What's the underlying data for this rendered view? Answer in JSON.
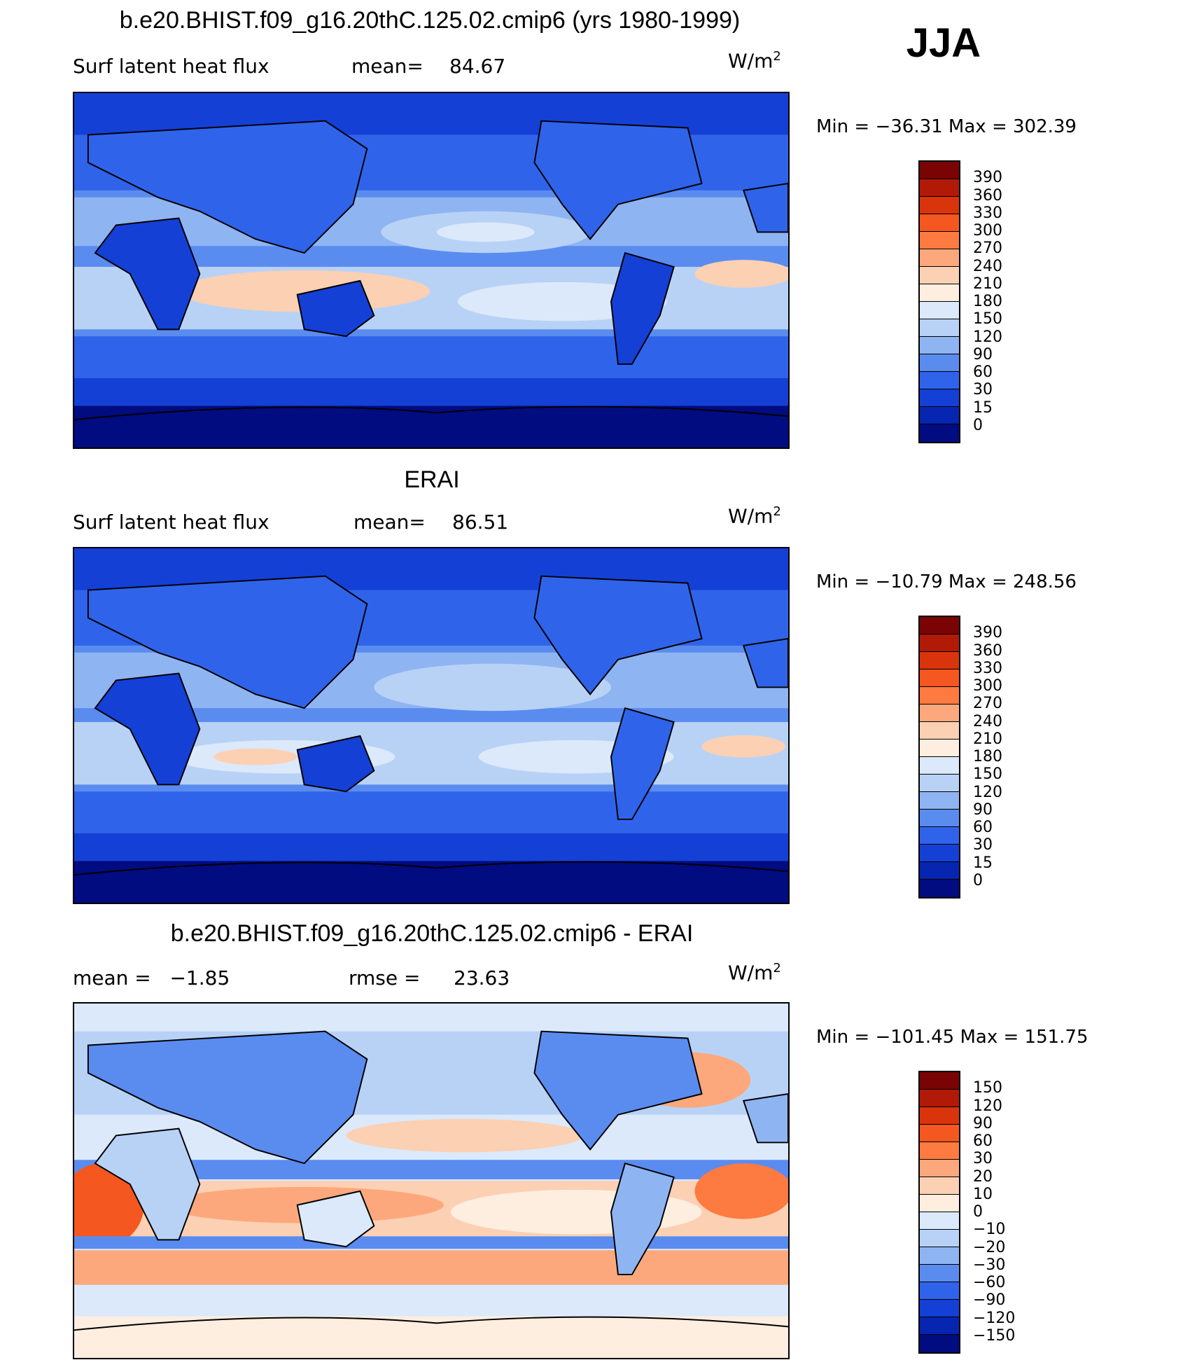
{
  "season": "JJA",
  "panels": [
    {
      "title": "b.e20.BHIST.f09_g16.20thC.125.02.cmip6 (yrs 1980-1999)",
      "left_label": "Surf latent heat flux",
      "mid_label": "mean=",
      "mid_value": "84.67",
      "units_base": "W/m",
      "units_exp": "2",
      "min_label": "Min = −36.31 Max = 302.39",
      "palette": "abs",
      "colorbar": [
        "390",
        "360",
        "330",
        "300",
        "270",
        "240",
        "210",
        "180",
        "150",
        "120",
        "90",
        "60",
        "30",
        "15",
        "0"
      ]
    },
    {
      "title": "ERAI",
      "left_label": "Surf latent heat flux",
      "mid_label": "mean=",
      "mid_value": "86.51",
      "units_base": "W/m",
      "units_exp": "2",
      "min_label": "Min = −10.79 Max = 248.56",
      "palette": "abs",
      "colorbar": [
        "390",
        "360",
        "330",
        "300",
        "270",
        "240",
        "210",
        "180",
        "150",
        "120",
        "90",
        "60",
        "30",
        "15",
        "0"
      ]
    },
    {
      "title": "b.e20.BHIST.f09_g16.20thC.125.02.cmip6 - ERAI",
      "left_label": "mean =   −1.85",
      "mid_label": "rmse =",
      "mid_value": "23.63",
      "units_base": "W/m",
      "units_exp": "2",
      "min_label": "Min = −101.45 Max = 151.75",
      "palette": "diff",
      "colorbar": [
        "150",
        "120",
        "90",
        "60",
        "30",
        "20",
        "10",
        "0",
        "−10",
        "−20",
        "−30",
        "−60",
        "−90",
        "−120",
        "−150"
      ]
    }
  ],
  "colors": {
    "abs": [
      "#7a0403",
      "#b01a06",
      "#d9340b",
      "#f4571f",
      "#fd7a40",
      "#fda87c",
      "#fcd0b3",
      "#fdeee0",
      "#dbe9fb",
      "#b8d2f6",
      "#8fb4f2",
      "#5a8cf0",
      "#2f64ea",
      "#1440d6",
      "#0625b0",
      "#010c80"
    ],
    "diff": [
      "#7a0403",
      "#b01a06",
      "#d9340b",
      "#f4571f",
      "#fd7a40",
      "#fda87c",
      "#fcd0b3",
      "#fdeee0",
      "#dbe9fb",
      "#b8d2f6",
      "#8fb4f2",
      "#5a8cf0",
      "#2f64ea",
      "#1440d6",
      "#0625b0",
      "#010c80"
    ]
  }
}
